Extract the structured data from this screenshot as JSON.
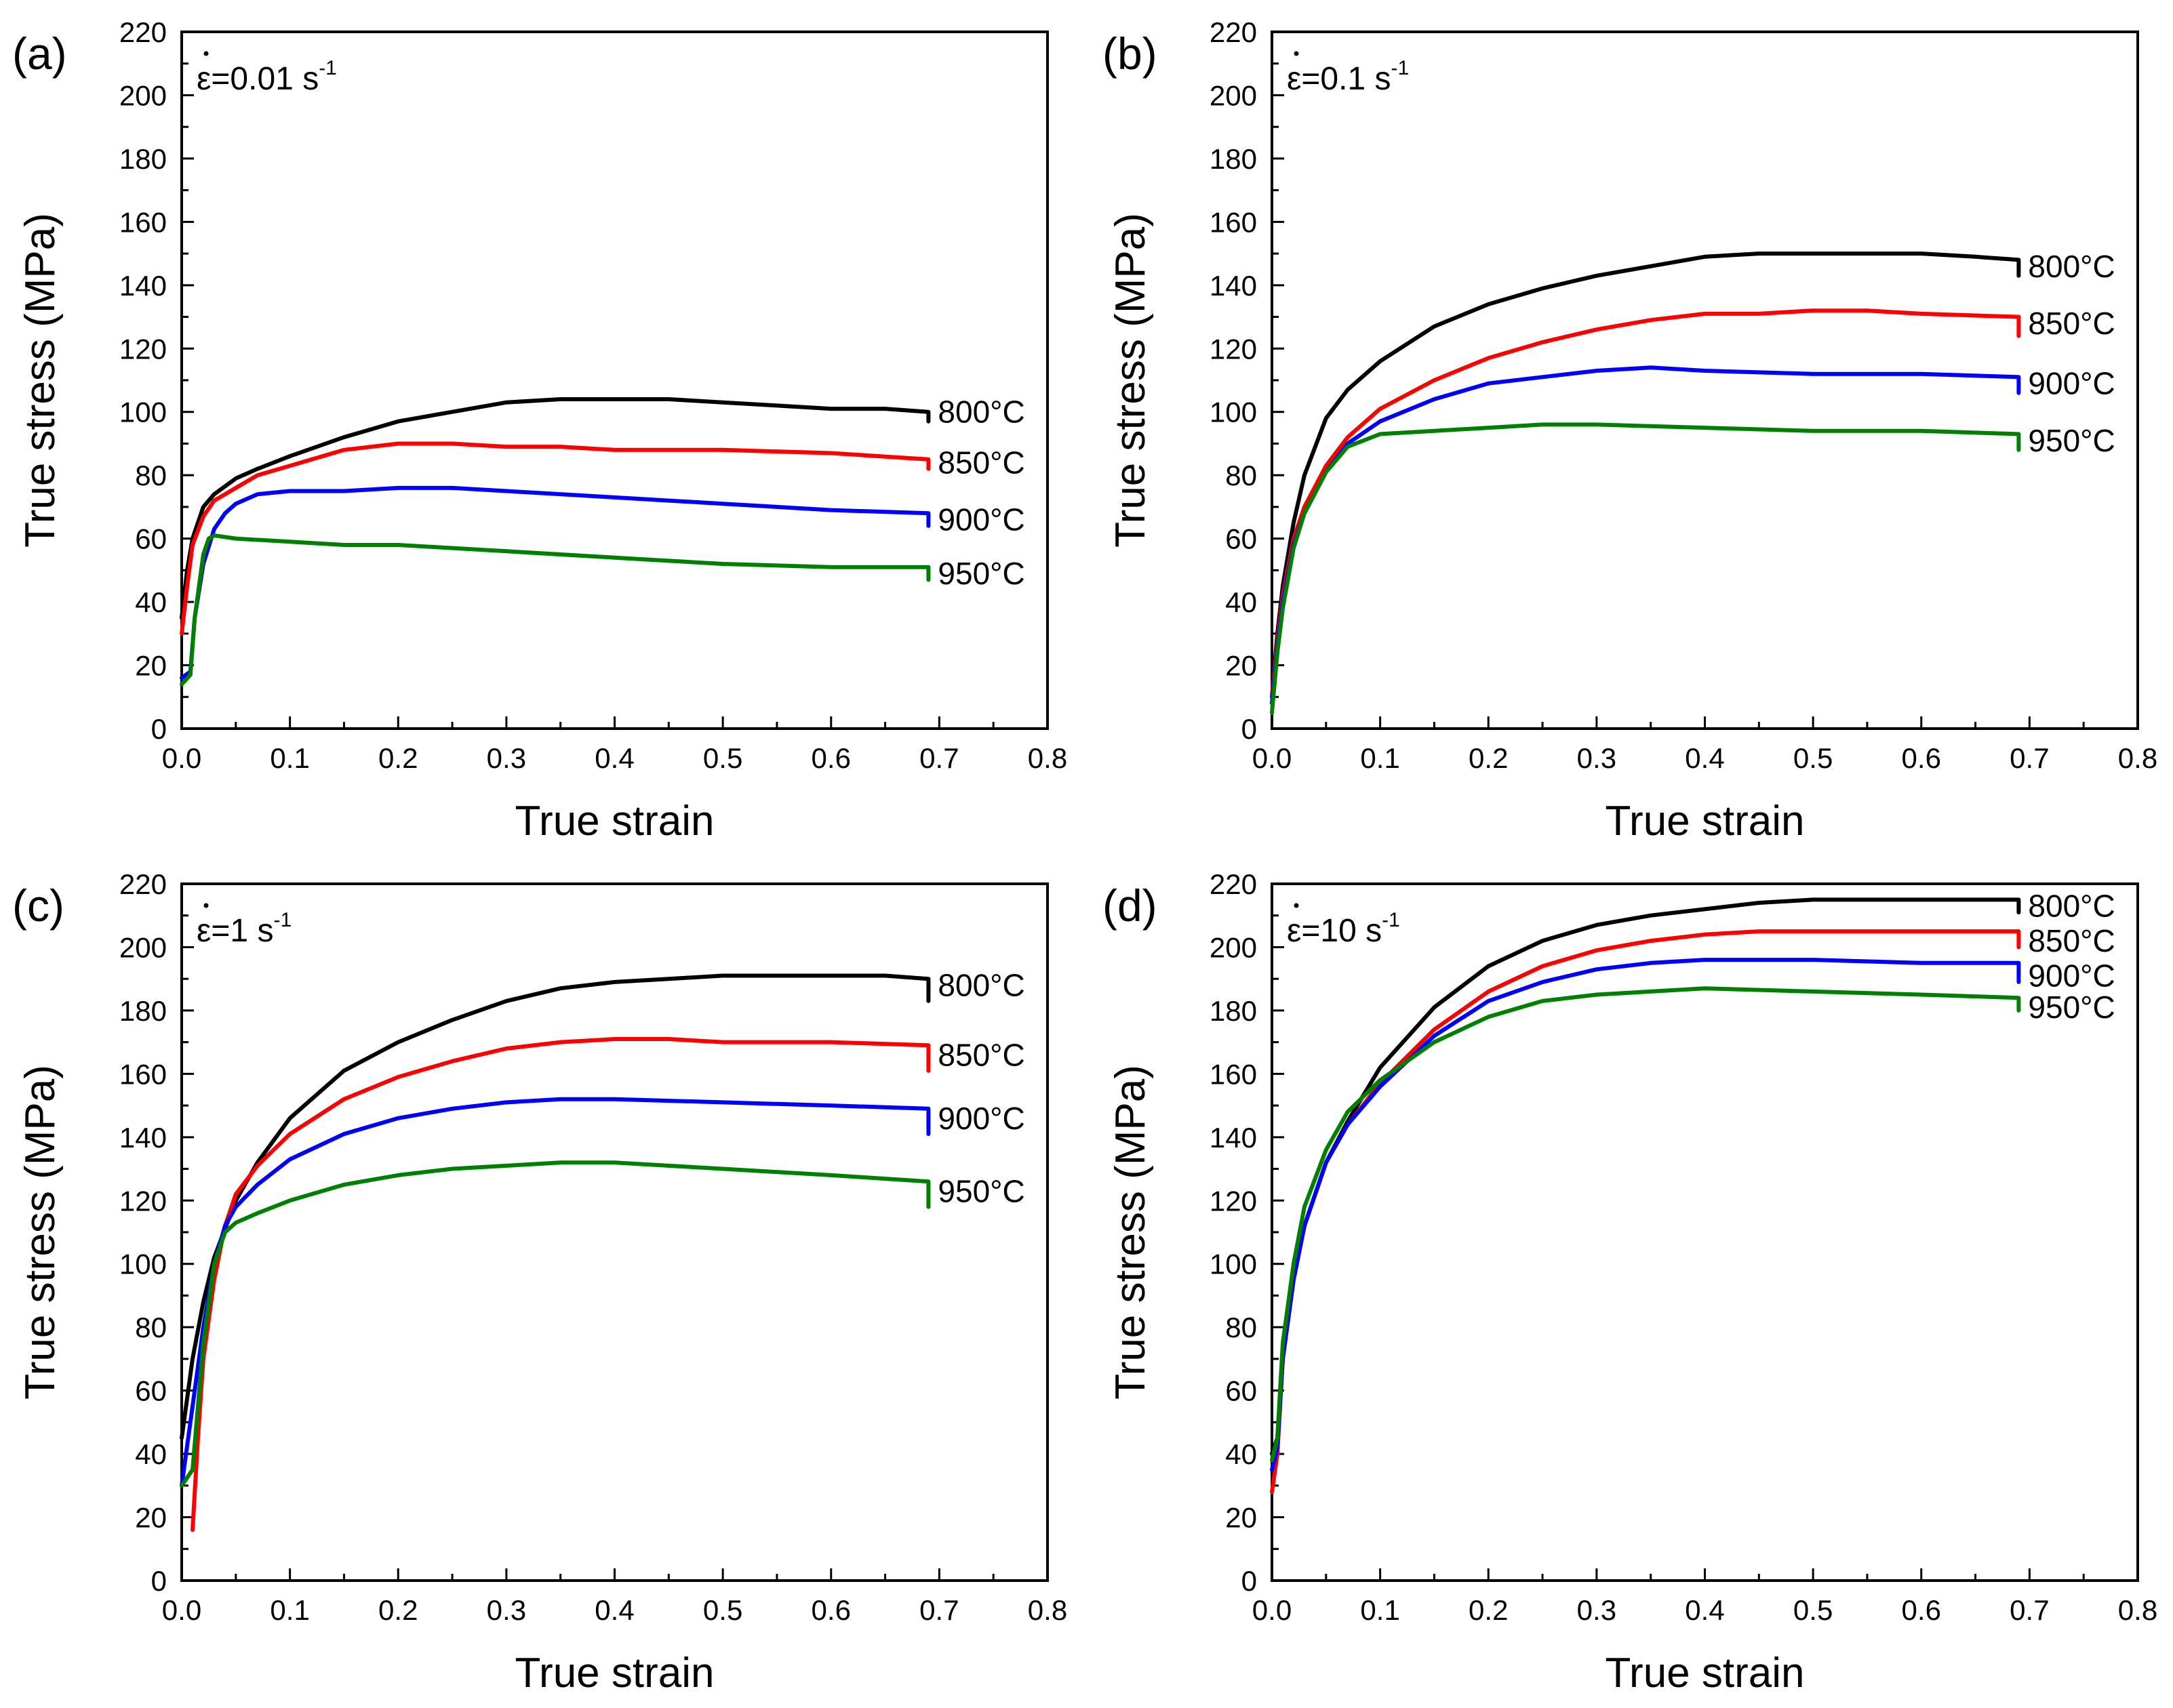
{
  "colors": {
    "800": "#000000",
    "850": "#ff0000",
    "900": "#0000ff",
    "950": "#008000"
  },
  "chart_data": [
    {
      "type": "line",
      "panel_label": "(a)",
      "rate_base": "ε=0.01 s",
      "rate_exp": "-1",
      "xlabel": "True strain",
      "ylabel": "True stress (MPa)",
      "xlim": [
        0,
        0.8
      ],
      "ylim": [
        0,
        220
      ],
      "xticks": [
        "0.0",
        "0.1",
        "0.2",
        "0.3",
        "0.4",
        "0.5",
        "0.6",
        "0.7",
        "0.8"
      ],
      "yticks": [
        "0",
        "20",
        "40",
        "60",
        "80",
        "100",
        "120",
        "140",
        "160",
        "180",
        "200",
        "220"
      ],
      "series": [
        {
          "name": "800°C",
          "color_key": "800",
          "label_y": 100,
          "end_drop": 3,
          "x": [
            0,
            0.005,
            0.01,
            0.02,
            0.03,
            0.05,
            0.07,
            0.1,
            0.15,
            0.2,
            0.25,
            0.3,
            0.35,
            0.4,
            0.45,
            0.5,
            0.55,
            0.6,
            0.65,
            0.69
          ],
          "y": [
            35,
            50,
            60,
            70,
            74,
            79,
            82,
            86,
            92,
            97,
            100,
            103,
            104,
            104,
            104,
            103,
            102,
            101,
            101,
            100
          ]
        },
        {
          "name": "850°C",
          "color_key": "850",
          "label_y": 84,
          "end_drop": 3,
          "x": [
            0,
            0.005,
            0.01,
            0.02,
            0.03,
            0.05,
            0.07,
            0.1,
            0.15,
            0.2,
            0.25,
            0.3,
            0.35,
            0.4,
            0.5,
            0.6,
            0.69
          ],
          "y": [
            30,
            45,
            58,
            67,
            72,
            76,
            80,
            83,
            88,
            90,
            90,
            89,
            89,
            88,
            88,
            87,
            85
          ]
        },
        {
          "name": "900°C",
          "color_key": "900",
          "label_y": 66,
          "end_drop": 4,
          "x": [
            0,
            0.008,
            0.012,
            0.02,
            0.03,
            0.04,
            0.05,
            0.07,
            0.1,
            0.15,
            0.2,
            0.25,
            0.3,
            0.4,
            0.5,
            0.6,
            0.69
          ],
          "y": [
            16,
            18,
            35,
            52,
            63,
            68,
            71,
            74,
            75,
            75,
            76,
            76,
            75,
            73,
            71,
            69,
            68
          ]
        },
        {
          "name": "950°C",
          "color_key": "950",
          "label_y": 49,
          "end_drop": 4,
          "x": [
            0,
            0.008,
            0.012,
            0.02,
            0.025,
            0.03,
            0.05,
            0.1,
            0.15,
            0.2,
            0.3,
            0.4,
            0.5,
            0.6,
            0.69
          ],
          "y": [
            14,
            17,
            35,
            55,
            60,
            61,
            60,
            59,
            58,
            58,
            56,
            54,
            52,
            51,
            51
          ]
        }
      ]
    },
    {
      "type": "line",
      "panel_label": "(b)",
      "rate_base": "ε=0.1 s",
      "rate_exp": "-1",
      "xlabel": "True strain",
      "ylabel": "True stress (MPa)",
      "xlim": [
        0,
        0.8
      ],
      "ylim": [
        0,
        220
      ],
      "xticks": [
        "0.0",
        "0.1",
        "0.2",
        "0.3",
        "0.4",
        "0.5",
        "0.6",
        "0.7",
        "0.8"
      ],
      "yticks": [
        "0",
        "20",
        "40",
        "60",
        "80",
        "100",
        "120",
        "140",
        "160",
        "180",
        "200",
        "220"
      ],
      "series": [
        {
          "name": "800°C",
          "color_key": "800",
          "label_y": 146,
          "end_drop": 5,
          "x": [
            0,
            0.005,
            0.01,
            0.02,
            0.03,
            0.05,
            0.07,
            0.1,
            0.15,
            0.2,
            0.25,
            0.3,
            0.35,
            0.4,
            0.45,
            0.5,
            0.55,
            0.6,
            0.65,
            0.69
          ],
          "y": [
            10,
            30,
            45,
            65,
            80,
            98,
            107,
            116,
            127,
            134,
            139,
            143,
            146,
            149,
            150,
            150,
            150,
            150,
            149,
            148
          ]
        },
        {
          "name": "850°C",
          "color_key": "850",
          "label_y": 128,
          "end_drop": 6,
          "x": [
            0,
            0.005,
            0.01,
            0.02,
            0.03,
            0.05,
            0.07,
            0.1,
            0.15,
            0.2,
            0.25,
            0.3,
            0.35,
            0.4,
            0.45,
            0.5,
            0.55,
            0.6,
            0.69
          ],
          "y": [
            10,
            28,
            42,
            60,
            70,
            83,
            92,
            101,
            110,
            117,
            122,
            126,
            129,
            131,
            131,
            132,
            132,
            131,
            130
          ]
        },
        {
          "name": "900°C",
          "color_key": "900",
          "label_y": 109,
          "end_drop": 5,
          "x": [
            0,
            0.005,
            0.01,
            0.02,
            0.03,
            0.05,
            0.07,
            0.1,
            0.15,
            0.2,
            0.25,
            0.3,
            0.35,
            0.4,
            0.5,
            0.6,
            0.69
          ],
          "y": [
            8,
            26,
            40,
            58,
            68,
            81,
            90,
            97,
            104,
            109,
            111,
            113,
            114,
            113,
            112,
            112,
            111
          ]
        },
        {
          "name": "950°C",
          "color_key": "950",
          "label_y": 91,
          "end_drop": 5,
          "x": [
            0,
            0.005,
            0.01,
            0.02,
            0.03,
            0.05,
            0.07,
            0.1,
            0.15,
            0.2,
            0.25,
            0.3,
            0.4,
            0.5,
            0.6,
            0.69
          ],
          "y": [
            5,
            24,
            38,
            57,
            68,
            81,
            89,
            93,
            94,
            95,
            96,
            96,
            95,
            94,
            94,
            93
          ]
        }
      ]
    },
    {
      "type": "line",
      "panel_label": "(c)",
      "rate_base": "ε=1 s",
      "rate_exp": "-1",
      "xlabel": "True strain",
      "ylabel": "True stress (MPa)",
      "xlim": [
        0,
        0.8
      ],
      "ylim": [
        0,
        220
      ],
      "xticks": [
        "0.0",
        "0.1",
        "0.2",
        "0.3",
        "0.4",
        "0.5",
        "0.6",
        "0.7",
        "0.8"
      ],
      "yticks": [
        "0",
        "20",
        "40",
        "60",
        "80",
        "100",
        "120",
        "140",
        "160",
        "180",
        "200",
        "220"
      ],
      "series": [
        {
          "name": "800°C",
          "color_key": "800",
          "label_y": 188,
          "end_drop": 7,
          "x": [
            0,
            0.01,
            0.02,
            0.03,
            0.05,
            0.07,
            0.1,
            0.15,
            0.2,
            0.25,
            0.3,
            0.35,
            0.4,
            0.45,
            0.5,
            0.55,
            0.6,
            0.65,
            0.69
          ],
          "y": [
            45,
            70,
            88,
            102,
            120,
            132,
            146,
            161,
            170,
            177,
            183,
            187,
            189,
            190,
            191,
            191,
            191,
            191,
            190
          ]
        },
        {
          "name": "850°C",
          "color_key": "850",
          "label_y": 166,
          "end_drop": 8,
          "x": [
            0.01,
            0.015,
            0.02,
            0.03,
            0.04,
            0.05,
            0.07,
            0.1,
            0.15,
            0.2,
            0.25,
            0.3,
            0.35,
            0.4,
            0.45,
            0.5,
            0.6,
            0.69
          ],
          "y": [
            16,
            45,
            70,
            95,
            112,
            122,
            131,
            141,
            152,
            159,
            164,
            168,
            170,
            171,
            171,
            170,
            170,
            169
          ]
        },
        {
          "name": "900°C",
          "color_key": "900",
          "label_y": 146,
          "end_drop": 8,
          "x": [
            0,
            0.01,
            0.02,
            0.03,
            0.04,
            0.05,
            0.07,
            0.1,
            0.15,
            0.2,
            0.25,
            0.3,
            0.35,
            0.4,
            0.5,
            0.6,
            0.69
          ],
          "y": [
            30,
            55,
            80,
            100,
            112,
            118,
            125,
            133,
            141,
            146,
            149,
            151,
            152,
            152,
            151,
            150,
            149
          ]
        },
        {
          "name": "950°C",
          "color_key": "950",
          "label_y": 123,
          "end_drop": 8,
          "x": [
            0,
            0.01,
            0.02,
            0.03,
            0.04,
            0.05,
            0.07,
            0.1,
            0.15,
            0.2,
            0.25,
            0.3,
            0.35,
            0.4,
            0.45,
            0.5,
            0.6,
            0.69
          ],
          "y": [
            30,
            35,
            75,
            100,
            110,
            113,
            116,
            120,
            125,
            128,
            130,
            131,
            132,
            132,
            131,
            130,
            128,
            126
          ]
        }
      ]
    },
    {
      "type": "line",
      "panel_label": "(d)",
      "rate_base": "ε=10 s",
      "rate_exp": "-1",
      "xlabel": "True strain",
      "ylabel": "True stress (MPa)",
      "xlim": [
        0,
        0.8
      ],
      "ylim": [
        0,
        220
      ],
      "xticks": [
        "0.0",
        "0.1",
        "0.2",
        "0.3",
        "0.4",
        "0.5",
        "0.6",
        "0.7",
        "0.8"
      ],
      "yticks": [
        "0",
        "20",
        "40",
        "60",
        "80",
        "100",
        "120",
        "140",
        "160",
        "180",
        "200",
        "220"
      ],
      "series": [
        {
          "name": "800°C",
          "color_key": "800",
          "label_y": 213,
          "end_drop": 4,
          "x": [
            0,
            0.005,
            0.01,
            0.02,
            0.03,
            0.05,
            0.07,
            0.1,
            0.15,
            0.2,
            0.25,
            0.3,
            0.35,
            0.4,
            0.45,
            0.5,
            0.55,
            0.6,
            0.65,
            0.69
          ],
          "y": [
            40,
            45,
            70,
            95,
            112,
            132,
            145,
            162,
            181,
            194,
            202,
            207,
            210,
            212,
            214,
            215,
            215,
            215,
            215,
            215
          ]
        },
        {
          "name": "850°C",
          "color_key": "850",
          "label_y": 202,
          "end_drop": 5,
          "x": [
            0,
            0.005,
            0.01,
            0.02,
            0.03,
            0.05,
            0.07,
            0.1,
            0.15,
            0.2,
            0.25,
            0.3,
            0.35,
            0.4,
            0.45,
            0.5,
            0.55,
            0.6,
            0.69
          ],
          "y": [
            28,
            40,
            70,
            95,
            112,
            132,
            144,
            157,
            174,
            186,
            194,
            199,
            202,
            204,
            205,
            205,
            205,
            205,
            205
          ]
        },
        {
          "name": "900°C",
          "color_key": "900",
          "label_y": 191,
          "end_drop": 6,
          "x": [
            0,
            0.005,
            0.01,
            0.02,
            0.03,
            0.05,
            0.07,
            0.1,
            0.15,
            0.2,
            0.25,
            0.3,
            0.35,
            0.4,
            0.5,
            0.6,
            0.69
          ],
          "y": [
            35,
            42,
            70,
            95,
            112,
            132,
            144,
            156,
            172,
            183,
            189,
            193,
            195,
            196,
            196,
            195,
            195
          ]
        },
        {
          "name": "950°C",
          "color_key": "950",
          "label_y": 181,
          "end_drop": 4,
          "x": [
            0,
            0.005,
            0.01,
            0.02,
            0.03,
            0.05,
            0.07,
            0.1,
            0.15,
            0.2,
            0.25,
            0.3,
            0.35,
            0.4,
            0.5,
            0.6,
            0.69
          ],
          "y": [
            38,
            45,
            75,
            100,
            118,
            136,
            148,
            158,
            170,
            178,
            183,
            185,
            186,
            187,
            186,
            185,
            184
          ]
        }
      ]
    }
  ]
}
